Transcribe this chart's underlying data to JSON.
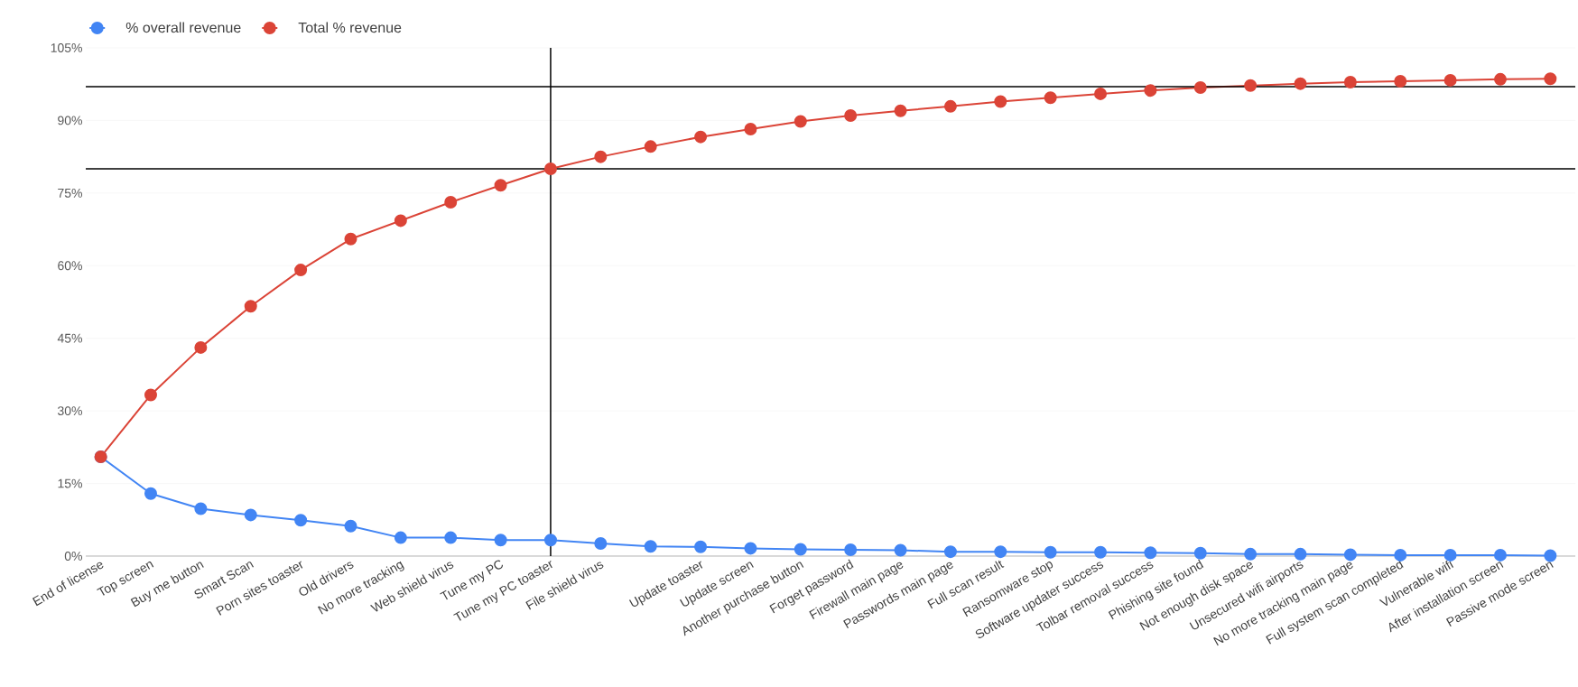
{
  "chart_data": {
    "type": "line",
    "categories": [
      "End of license",
      "Top screen",
      "Buy me button",
      "Smart Scan",
      "Porn sites toaster",
      "Old drivers",
      "No more tracking",
      "Web shield virus",
      "Tune my PC",
      "Tune my PC toaster",
      "File shield virus",
      null,
      "Update toaster",
      "Update screen",
      "Another purchase button",
      "Forget password",
      "Firewall main page",
      "Passwords main page",
      "Full scan result",
      "Ransomware stop",
      "Software updater success",
      "Tolbar removal success",
      "Phishing site found",
      "Not enough disk space",
      "Unsecured wifi airports",
      "No more tracking main page",
      "Full system scan completed",
      "Vulnerable wifi",
      "After installation screen",
      "Passive mode screen"
    ],
    "series": [
      {
        "name": "% overall revenue",
        "color": "#4285f4",
        "values": [
          20.5,
          12.9,
          9.8,
          8.5,
          7.4,
          6.2,
          3.8,
          3.8,
          3.3,
          3.3,
          2.6,
          2.0,
          1.9,
          1.6,
          1.4,
          1.3,
          1.2,
          0.9,
          0.9,
          0.8,
          0.8,
          0.7,
          0.6,
          0.4,
          0.4,
          0.3,
          0.2,
          0.2,
          0.2,
          0.1
        ]
      },
      {
        "name": "Total % revenue",
        "color": "#db4437",
        "values": [
          20.5,
          33.3,
          43.1,
          51.6,
          59.1,
          65.5,
          69.3,
          73.1,
          76.6,
          80.0,
          82.5,
          84.6,
          86.6,
          88.2,
          89.8,
          91.0,
          92.0,
          92.9,
          93.9,
          94.7,
          95.5,
          96.2,
          96.8,
          97.2,
          97.6,
          97.9,
          98.1,
          98.3,
          98.5,
          98.6
        ]
      }
    ],
    "ylim": [
      0,
      105
    ],
    "yticks": [
      {
        "value": 0,
        "label": "0%"
      },
      {
        "value": 15,
        "label": "15%"
      },
      {
        "value": 30,
        "label": "30%"
      },
      {
        "value": 45,
        "label": "45%"
      },
      {
        "value": 60,
        "label": "60%"
      },
      {
        "value": 75,
        "label": "75%"
      },
      {
        "value": 90,
        "label": "90%"
      },
      {
        "value": 105,
        "label": "105%"
      }
    ],
    "grid": "y",
    "legend": "top left",
    "marker": "circle",
    "line_style": "solid",
    "ref_lines": [
      {
        "axis": "y",
        "value": 80,
        "color": "#000000"
      },
      {
        "axis": "y",
        "value": 97,
        "color": "#000000"
      },
      {
        "axis": "x",
        "value": "Tune my PC toaster",
        "color": "#000000"
      }
    ]
  }
}
